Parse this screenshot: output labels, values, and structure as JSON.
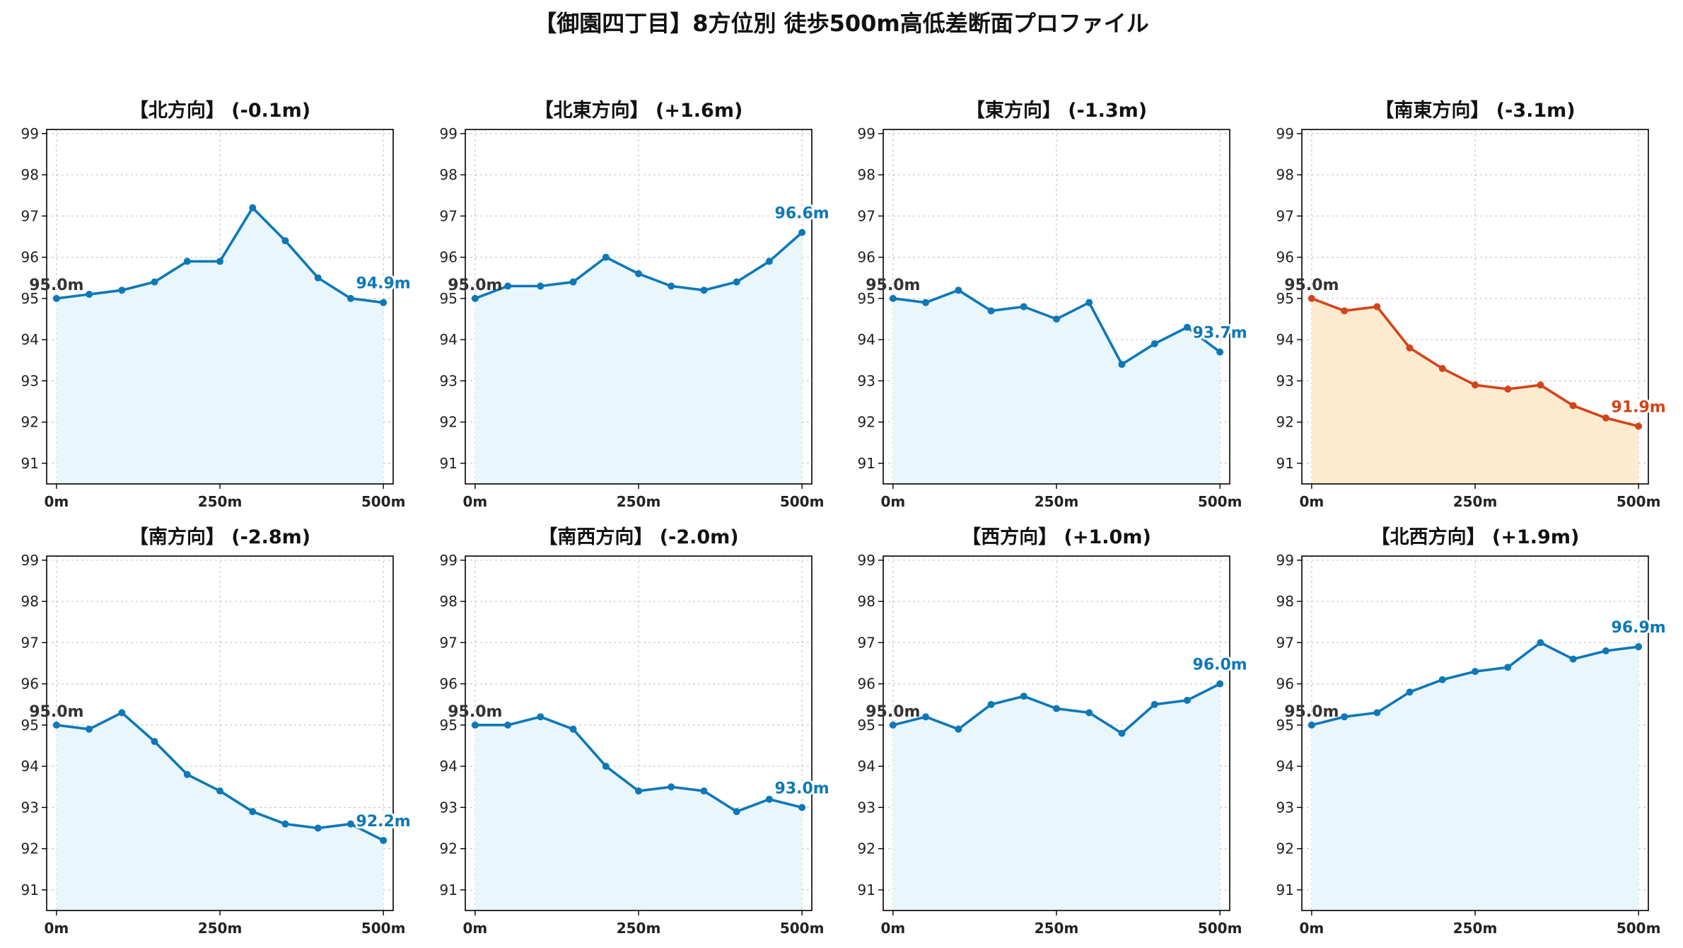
{
  "figure_title": "【御園四丁目】8方位別 徒歩500m高低差断面プロファイル",
  "colors": {
    "normal_line": "#0d78b7",
    "normal_fill": "#e9f6fc",
    "highlight_line": "#d4441a",
    "highlight_fill": "#fdebd0",
    "start_label": "#333333"
  },
  "chart_data": [
    {
      "type": "line",
      "title": "【北方向】 (-0.1m)",
      "x": [
        0,
        50,
        100,
        150,
        200,
        250,
        300,
        350,
        400,
        450,
        500
      ],
      "values": [
        95.0,
        95.1,
        95.2,
        95.4,
        95.9,
        95.9,
        97.2,
        96.4,
        95.5,
        95.0,
        94.9
      ],
      "start_label": "95.0m",
      "end_label": "94.9m",
      "xticks": [
        "0m",
        "250m",
        "500m"
      ],
      "yticks": [
        91,
        92,
        93,
        94,
        95,
        96,
        97,
        98,
        99
      ],
      "ylim": [
        90.5,
        99.1
      ],
      "xlim": [
        -15,
        515
      ],
      "grid": true,
      "highlight": false
    },
    {
      "type": "line",
      "title": "【北東方向】 (+1.6m)",
      "x": [
        0,
        50,
        100,
        150,
        200,
        250,
        300,
        350,
        400,
        450,
        500
      ],
      "values": [
        95.0,
        95.3,
        95.3,
        95.4,
        96.0,
        95.6,
        95.3,
        95.2,
        95.4,
        95.9,
        96.6
      ],
      "start_label": "95.0m",
      "end_label": "96.6m",
      "xticks": [
        "0m",
        "250m",
        "500m"
      ],
      "yticks": [
        91,
        92,
        93,
        94,
        95,
        96,
        97,
        98,
        99
      ],
      "ylim": [
        90.5,
        99.1
      ],
      "xlim": [
        -15,
        515
      ],
      "grid": true,
      "highlight": false
    },
    {
      "type": "line",
      "title": "【東方向】 (-1.3m)",
      "x": [
        0,
        50,
        100,
        150,
        200,
        250,
        300,
        350,
        400,
        450,
        500
      ],
      "values": [
        95.0,
        94.9,
        95.2,
        94.7,
        94.8,
        94.5,
        94.9,
        93.4,
        93.9,
        94.3,
        93.7
      ],
      "start_label": "95.0m",
      "end_label": "93.7m",
      "xticks": [
        "0m",
        "250m",
        "500m"
      ],
      "yticks": [
        91,
        92,
        93,
        94,
        95,
        96,
        97,
        98,
        99
      ],
      "ylim": [
        90.5,
        99.1
      ],
      "xlim": [
        -15,
        515
      ],
      "grid": true,
      "highlight": false
    },
    {
      "type": "line",
      "title": "【南東方向】 (-3.1m)",
      "x": [
        0,
        50,
        100,
        150,
        200,
        250,
        300,
        350,
        400,
        450,
        500
      ],
      "values": [
        95.0,
        94.7,
        94.8,
        93.8,
        93.3,
        92.9,
        92.8,
        92.9,
        92.4,
        92.1,
        91.9
      ],
      "start_label": "95.0m",
      "end_label": "91.9m",
      "xticks": [
        "0m",
        "250m",
        "500m"
      ],
      "yticks": [
        91,
        92,
        93,
        94,
        95,
        96,
        97,
        98,
        99
      ],
      "ylim": [
        90.5,
        99.1
      ],
      "xlim": [
        -15,
        515
      ],
      "grid": true,
      "highlight": true
    },
    {
      "type": "line",
      "title": "【南方向】 (-2.8m)",
      "x": [
        0,
        50,
        100,
        150,
        200,
        250,
        300,
        350,
        400,
        450,
        500
      ],
      "values": [
        95.0,
        94.9,
        95.3,
        94.6,
        93.8,
        93.4,
        92.9,
        92.6,
        92.5,
        92.6,
        92.2
      ],
      "start_label": "95.0m",
      "end_label": "92.2m",
      "xticks": [
        "0m",
        "250m",
        "500m"
      ],
      "yticks": [
        91,
        92,
        93,
        94,
        95,
        96,
        97,
        98,
        99
      ],
      "ylim": [
        90.5,
        99.1
      ],
      "xlim": [
        -15,
        515
      ],
      "grid": true,
      "highlight": false
    },
    {
      "type": "line",
      "title": "【南西方向】 (-2.0m)",
      "x": [
        0,
        50,
        100,
        150,
        200,
        250,
        300,
        350,
        400,
        450,
        500
      ],
      "values": [
        95.0,
        95.0,
        95.2,
        94.9,
        94.0,
        93.4,
        93.5,
        93.4,
        92.9,
        93.2,
        93.0
      ],
      "start_label": "95.0m",
      "end_label": "93.0m",
      "xticks": [
        "0m",
        "250m",
        "500m"
      ],
      "yticks": [
        91,
        92,
        93,
        94,
        95,
        96,
        97,
        98,
        99
      ],
      "ylim": [
        90.5,
        99.1
      ],
      "xlim": [
        -15,
        515
      ],
      "grid": true,
      "highlight": false
    },
    {
      "type": "line",
      "title": "【西方向】 (+1.0m)",
      "x": [
        0,
        50,
        100,
        150,
        200,
        250,
        300,
        350,
        400,
        450,
        500
      ],
      "values": [
        95.0,
        95.2,
        94.9,
        95.5,
        95.7,
        95.4,
        95.3,
        94.8,
        95.5,
        95.6,
        96.0
      ],
      "start_label": "95.0m",
      "end_label": "96.0m",
      "xticks": [
        "0m",
        "250m",
        "500m"
      ],
      "yticks": [
        91,
        92,
        93,
        94,
        95,
        96,
        97,
        98,
        99
      ],
      "ylim": [
        90.5,
        99.1
      ],
      "xlim": [
        -15,
        515
      ],
      "grid": true,
      "highlight": false
    },
    {
      "type": "line",
      "title": "【北西方向】 (+1.9m)",
      "x": [
        0,
        50,
        100,
        150,
        200,
        250,
        300,
        350,
        400,
        450,
        500
      ],
      "values": [
        95.0,
        95.2,
        95.3,
        95.8,
        96.1,
        96.3,
        96.4,
        97.0,
        96.6,
        96.8,
        96.9
      ],
      "start_label": "95.0m",
      "end_label": "96.9m",
      "xticks": [
        "0m",
        "250m",
        "500m"
      ],
      "yticks": [
        91,
        92,
        93,
        94,
        95,
        96,
        97,
        98,
        99
      ],
      "ylim": [
        90.5,
        99.1
      ],
      "xlim": [
        -15,
        515
      ],
      "grid": true,
      "highlight": false
    }
  ]
}
